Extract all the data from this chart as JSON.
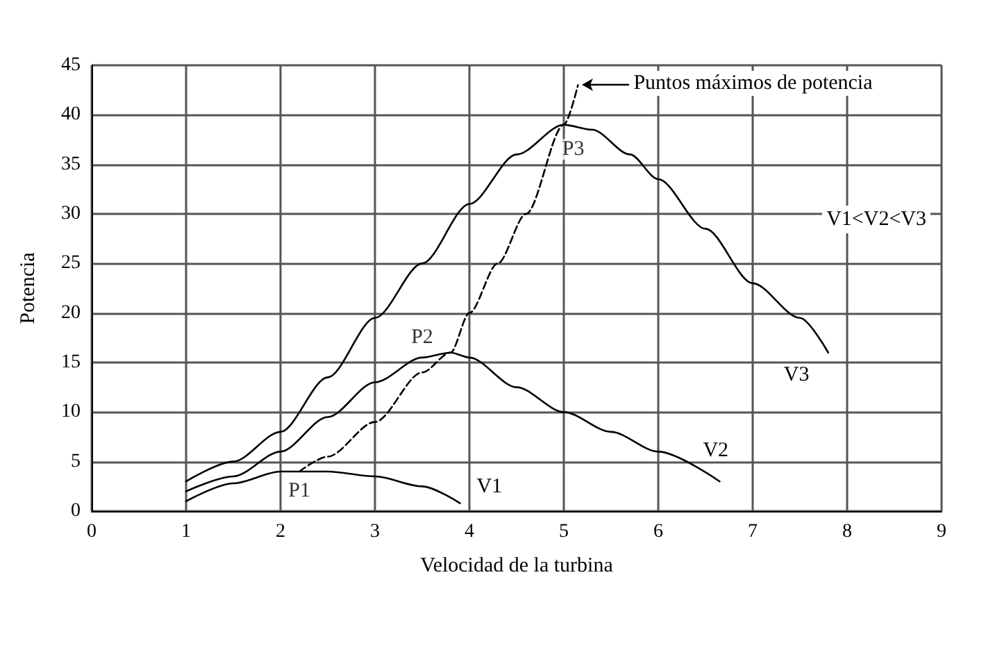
{
  "chart_data": {
    "type": "line",
    "xlabel": "Velocidad de la turbina",
    "ylabel": "Potencia",
    "xlim": [
      0,
      9
    ],
    "xticks": [
      0,
      1,
      2,
      3,
      4,
      5,
      6,
      7,
      8,
      9
    ],
    "ylim": [
      0,
      45
    ],
    "yticks": [
      0,
      5,
      10,
      15,
      20,
      25,
      30,
      35,
      40,
      45
    ],
    "grid": true,
    "marker": "none",
    "legend": false,
    "series": [
      {
        "name": "V1",
        "color": "#000000",
        "x": [
          1,
          1.5,
          2,
          2.5,
          3,
          3.5,
          3.9
        ],
        "values": [
          1,
          2.8,
          4,
          4,
          3.5,
          2.5,
          0.8
        ]
      },
      {
        "name": "V2",
        "color": "#000000",
        "x": [
          1,
          1.5,
          2,
          2.5,
          3,
          3.5,
          3.8,
          4,
          4.5,
          5,
          5.5,
          6,
          6.65
        ],
        "values": [
          2,
          3.5,
          6,
          9.5,
          13,
          15.5,
          16,
          15.5,
          12.5,
          10,
          8,
          6,
          3
        ]
      },
      {
        "name": "V3",
        "color": "#000000",
        "x": [
          1,
          1.5,
          2,
          2.5,
          3,
          3.5,
          4,
          4.5,
          5,
          5.3,
          5.7,
          6,
          6.5,
          7,
          7.5,
          7.8
        ],
        "values": [
          3,
          5,
          8,
          13.5,
          19.5,
          25,
          31,
          36,
          39,
          38.5,
          36,
          33.5,
          28.5,
          23,
          19.5,
          16
        ]
      },
      {
        "color": "#000000",
        "line_style": "dashed",
        "x": [
          2.2,
          2.5,
          3,
          3.5,
          3.8,
          4,
          4.3,
          4.6,
          5,
          5.15
        ],
        "values": [
          4,
          5.5,
          9,
          14,
          16,
          20,
          25,
          30,
          39,
          43
        ]
      }
    ],
    "annotations": [
      {
        "text": "Puntos máximos de potencia",
        "x": 5.15,
        "y": 43
      },
      {
        "text": "P1",
        "x": 2.2,
        "y": 2
      },
      {
        "text": "P2",
        "x": 3.5,
        "y": 17.5
      },
      {
        "text": "P3",
        "x": 5.1,
        "y": 36.5
      },
      "V1<V2<V3"
    ]
  }
}
